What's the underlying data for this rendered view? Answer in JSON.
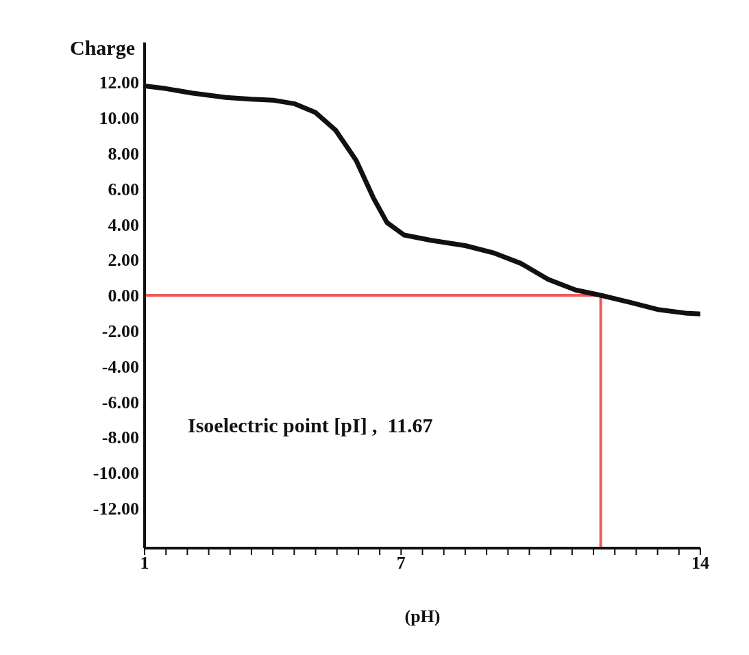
{
  "chart_data": {
    "type": "line",
    "xlabel": "(pH)",
    "ylabel": "Charge",
    "x": [
      1,
      1.5,
      2.1,
      2.9,
      3.5,
      4.0,
      4.5,
      5.0,
      5.47,
      5.95,
      6.35,
      6.67,
      7.07,
      7.7,
      8.5,
      9.15,
      9.8,
      10.44,
      11.08,
      11.67,
      12.36,
      13.0,
      13.64,
      14
    ],
    "series": [
      {
        "color": "#111111",
        "values": [
          11.8,
          11.65,
          11.4,
          11.15,
          11.05,
          11.0,
          10.8,
          10.3,
          9.3,
          7.6,
          5.5,
          4.1,
          3.4,
          3.1,
          2.8,
          2.4,
          1.8,
          0.9,
          0.3,
          0,
          -0.4,
          -0.8,
          -1.0,
          -1.05
        ]
      }
    ],
    "xlim": [
      1,
      14
    ],
    "xticks": [
      1,
      {
        "value": 1.5,
        "label": null
      },
      {
        "value": 2,
        "label": null
      },
      {
        "value": 2.5,
        "label": null
      },
      {
        "value": 3,
        "label": null
      },
      {
        "value": 3.5,
        "label": null
      },
      {
        "value": 4,
        "label": null
      },
      {
        "value": 4.5,
        "label": null
      },
      {
        "value": 5,
        "label": null
      },
      {
        "value": 5.5,
        "label": null
      },
      {
        "value": 6,
        "label": null
      },
      {
        "value": 6.5,
        "label": null
      },
      7,
      {
        "value": 7.5,
        "label": null
      },
      {
        "value": 8,
        "label": null
      },
      {
        "value": 8.5,
        "label": null
      },
      {
        "value": 9,
        "label": null
      },
      {
        "value": 9.5,
        "label": null
      },
      {
        "value": 10,
        "label": null
      },
      {
        "value": 10.5,
        "label": null
      },
      {
        "value": 11,
        "label": null
      },
      {
        "value": 11.5,
        "label": null
      },
      {
        "value": 12,
        "label": null
      },
      {
        "value": 12.5,
        "label": null
      },
      {
        "value": 13,
        "label": null
      },
      {
        "value": 13.5,
        "label": null
      },
      14
    ],
    "ylim": [
      -14.25,
      14.25
    ],
    "yticks": [
      {
        "value": 12,
        "label": "12.00"
      },
      {
        "value": 10,
        "label": "10.00"
      },
      {
        "value": 8,
        "label": "8.00"
      },
      {
        "value": 6,
        "label": "6.00"
      },
      {
        "value": 4,
        "label": "4.00"
      },
      {
        "value": 2,
        "label": "2.00"
      },
      {
        "value": 0,
        "label": "0.00"
      },
      {
        "value": -2,
        "label": "-2.00"
      },
      {
        "value": -4,
        "label": "-4.00"
      },
      {
        "value": -6,
        "label": "-6.00"
      },
      {
        "value": -8,
        "label": "-8.00"
      },
      {
        "value": -10,
        "label": "-10.00"
      },
      {
        "value": -12,
        "label": "-12.00"
      }
    ],
    "ref_lines": [
      {
        "axis": "y",
        "value": 0,
        "color": "#f05a5a"
      },
      {
        "axis": "x",
        "value": 11.67,
        "color": "#f05a5a"
      }
    ],
    "annotations": [
      "Isoelectric point [pI] ,  11.67"
    ],
    "grid": false,
    "legend": false,
    "marker": "none",
    "line_style": "solid"
  }
}
